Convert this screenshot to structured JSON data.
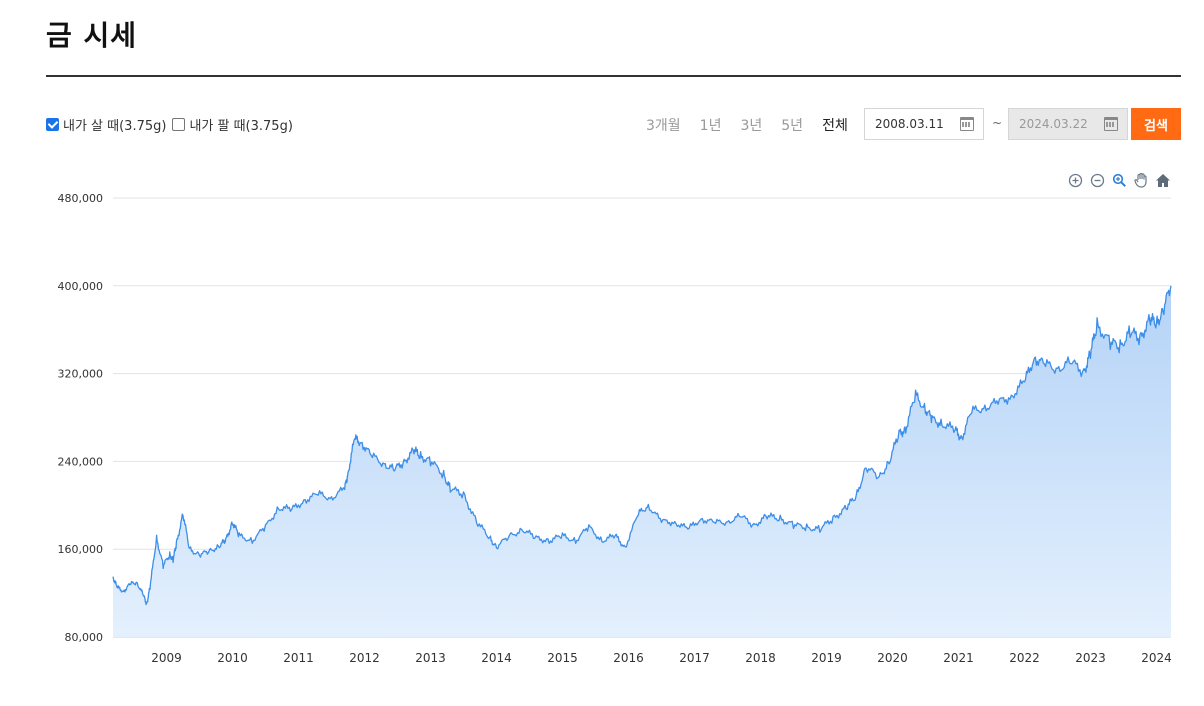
{
  "page": {
    "title": "금 시세"
  },
  "filters": {
    "buy_label": "내가 살 때(3.75g)",
    "buy_checked": true,
    "sell_label": "내가 팔 때(3.75g)",
    "sell_checked": false
  },
  "periods": [
    {
      "label": "3개월",
      "active": false
    },
    {
      "label": "1년",
      "active": false
    },
    {
      "label": "3년",
      "active": false
    },
    {
      "label": "5년",
      "active": false
    },
    {
      "label": "전체",
      "active": true
    }
  ],
  "date_range": {
    "start": "2008.03.11",
    "separator": "~",
    "end": "2024.03.22"
  },
  "search_label": "검색",
  "chart_tools": [
    "zoom-in-icon",
    "zoom-out-icon",
    "magnify-icon",
    "pan-hand-icon",
    "home-icon"
  ],
  "colors": {
    "line": "#3d8ee8",
    "fill_top": "#b4d3f7",
    "fill_bottom": "#e4f0fd",
    "search": "#ff6a13",
    "checkbox": "#1a73e8"
  },
  "chart_data": {
    "type": "area",
    "title": "",
    "xlabel": "",
    "ylabel": "",
    "grid": true,
    "legend": "none",
    "x_range": [
      2008.19,
      2024.22
    ],
    "ylim": [
      80000,
      480000
    ],
    "y_ticks": [
      80000,
      160000,
      240000,
      320000,
      400000,
      480000
    ],
    "y_tick_labels": [
      "80,000",
      "160,000",
      "240,000",
      "320,000",
      "400,000",
      "480,000"
    ],
    "x_ticks": [
      2009,
      2010,
      2011,
      2012,
      2013,
      2014,
      2015,
      2016,
      2017,
      2018,
      2019,
      2020,
      2021,
      2022,
      2023,
      2024
    ],
    "x_tick_labels": [
      "2009",
      "2010",
      "2011",
      "2012",
      "2013",
      "2014",
      "2015",
      "2016",
      "2017",
      "2018",
      "2019",
      "2020",
      "2021",
      "2022",
      "2023",
      "2024"
    ],
    "series": [
      {
        "x": [
          2008.19,
          2008.25,
          2008.35,
          2008.45,
          2008.55,
          2008.65,
          2008.7,
          2008.75,
          2008.85,
          2008.95,
          2009.05,
          2009.1,
          2009.15,
          2009.25,
          2009.35,
          2009.5,
          2009.65,
          2009.8,
          2009.9,
          2010.0,
          2010.1,
          2010.3,
          2010.5,
          2010.7,
          2010.9,
          2011.1,
          2011.3,
          2011.5,
          2011.7,
          2011.75,
          2011.85,
          2011.95,
          2012.1,
          2012.3,
          2012.45,
          2012.6,
          2012.75,
          2012.85,
          2013.0,
          2013.2,
          2013.3,
          2013.5,
          2013.7,
          2013.9,
          2014.0,
          2014.2,
          2014.4,
          2014.6,
          2014.8,
          2015.0,
          2015.2,
          2015.4,
          2015.6,
          2015.8,
          2015.95,
          2016.15,
          2016.3,
          2016.5,
          2016.7,
          2016.9,
          2017.1,
          2017.3,
          2017.5,
          2017.7,
          2017.9,
          2018.1,
          2018.3,
          2018.5,
          2018.7,
          2018.9,
          2019.1,
          2019.3,
          2019.45,
          2019.6,
          2019.8,
          2019.95,
          2020.1,
          2020.2,
          2020.35,
          2020.5,
          2020.6,
          2020.75,
          2020.95,
          2021.05,
          2021.2,
          2021.4,
          2021.6,
          2021.8,
          2022.0,
          2022.15,
          2022.3,
          2022.5,
          2022.7,
          2022.9,
          2023.0,
          2023.1,
          2023.3,
          2023.45,
          2023.6,
          2023.75,
          2023.9,
          2024.0,
          2024.1,
          2024.22
        ],
        "y": [
          135000,
          125000,
          122000,
          128000,
          130000,
          118000,
          110000,
          125000,
          170000,
          145000,
          155000,
          150000,
          165000,
          192000,
          160000,
          155000,
          158000,
          163000,
          168000,
          185000,
          172000,
          168000,
          180000,
          198000,
          196000,
          205000,
          210000,
          207000,
          215000,
          230000,
          260000,
          258000,
          245000,
          238000,
          232000,
          240000,
          250000,
          245000,
          240000,
          228000,
          215000,
          210000,
          185000,
          170000,
          162000,
          172000,
          178000,
          170000,
          168000,
          172000,
          168000,
          180000,
          168000,
          172000,
          162000,
          192000,
          200000,
          185000,
          185000,
          178000,
          188000,
          184000,
          185000,
          190000,
          182000,
          190000,
          188000,
          182000,
          180000,
          178000,
          188000,
          198000,
          208000,
          235000,
          225000,
          240000,
          265000,
          270000,
          300000,
          288000,
          278000,
          275000,
          268000,
          262000,
          285000,
          290000,
          293000,
          300000,
          312000,
          335000,
          328000,
          325000,
          330000,
          322000,
          338000,
          365000,
          348000,
          345000,
          358000,
          352000,
          370000,
          365000,
          378000,
          400000
        ]
      }
    ]
  }
}
